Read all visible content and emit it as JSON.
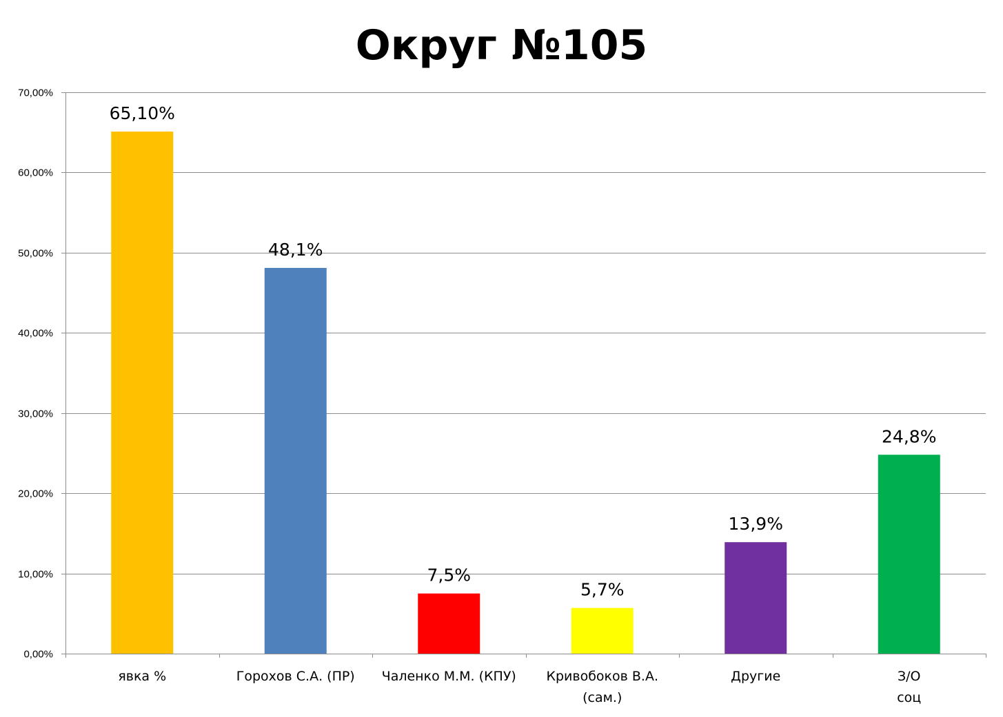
{
  "chart_data": {
    "type": "bar",
    "title": "Округ №105",
    "xlabel": "",
    "ylabel": "",
    "categories": [
      [
        "явка %"
      ],
      [
        "Горохов С.А. (ПР)"
      ],
      [
        "Чаленко М.М. (КПУ)"
      ],
      [
        "Кривобоков В.А.",
        "(сам.)"
      ],
      [
        "Другие"
      ],
      [
        "З/О",
        "соц"
      ]
    ],
    "values": [
      65.1,
      48.1,
      7.5,
      5.7,
      13.9,
      24.8
    ],
    "data_labels": [
      "65,10%",
      "48,1%",
      "7,5%",
      "5,7%",
      "13,9%",
      "24,8%"
    ],
    "colors": [
      "#FFC000",
      "#4F81BD",
      "#FF0000",
      "#FFFF00",
      "#7030A0",
      "#00B050"
    ],
    "ylim": [
      0,
      70
    ],
    "yticks": [
      0,
      10,
      20,
      30,
      40,
      50,
      60,
      70
    ],
    "ytick_labels": [
      "0,00%",
      "10,00%",
      "20,00%",
      "30,00%",
      "40,00%",
      "50,00%",
      "60,00%",
      "70,00%"
    ],
    "grid": true,
    "legend": "none"
  }
}
